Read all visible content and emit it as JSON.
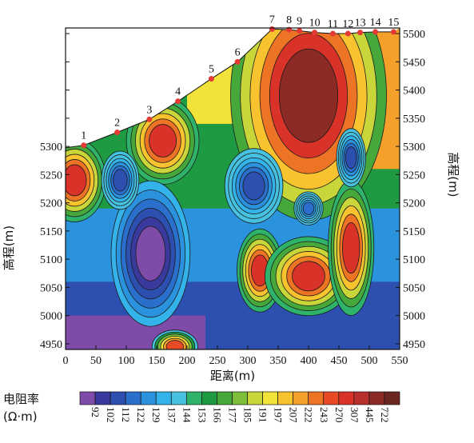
{
  "chart_data": {
    "type": "contour",
    "xlabel": "距离(m)",
    "ylabel_left": "高程(m)",
    "ylabel_right": "高程(m)",
    "xlim": [
      0,
      550
    ],
    "ylim": [
      4940,
      5510
    ],
    "x_ticks": [
      0,
      50,
      100,
      150,
      200,
      250,
      300,
      350,
      400,
      450,
      500,
      550
    ],
    "y_ticks": [
      4950,
      5000,
      5050,
      5100,
      5150,
      5200,
      5250,
      5300,
      5350,
      5400,
      5450,
      5500
    ],
    "surface_stations": [
      {
        "label": "1",
        "x": 30,
        "y": 5302
      },
      {
        "label": "2",
        "x": 85,
        "y": 5325
      },
      {
        "label": "3",
        "x": 138,
        "y": 5348
      },
      {
        "label": "4",
        "x": 185,
        "y": 5380
      },
      {
        "label": "5",
        "x": 240,
        "y": 5420
      },
      {
        "label": "6",
        "x": 283,
        "y": 5450
      },
      {
        "label": "7",
        "x": 340,
        "y": 5508
      },
      {
        "label": "8",
        "x": 368,
        "y": 5507
      },
      {
        "label": "9",
        "x": 385,
        "y": 5505
      },
      {
        "label": "10",
        "x": 410,
        "y": 5502
      },
      {
        "label": "11",
        "x": 440,
        "y": 5500
      },
      {
        "label": "12",
        "x": 465,
        "y": 5500
      },
      {
        "label": "13",
        "x": 485,
        "y": 5502
      },
      {
        "label": "14",
        "x": 510,
        "y": 5503
      },
      {
        "label": "15",
        "x": 540,
        "y": 5503
      }
    ],
    "colorbar": {
      "title": "电阻率",
      "unit": "(Ω·m)",
      "values": [
        92,
        102,
        112,
        122,
        129,
        137,
        144,
        153,
        166,
        177,
        185,
        191,
        197,
        207,
        222,
        243,
        270,
        307,
        445,
        722
      ],
      "colors": [
        "#7E4BA8",
        "#3A3A9E",
        "#2D4FB0",
        "#2A6FCB",
        "#2B92DD",
        "#34B3EA",
        "#46C2E0",
        "#2FB36B",
        "#1E9A43",
        "#46A83A",
        "#7DBE3B",
        "#C9D63A",
        "#F2E23A",
        "#F9C32F",
        "#F5A02A",
        "#EE7425",
        "#E84A25",
        "#D93229",
        "#B8302C",
        "#8C2A25",
        "#6B2622"
      ]
    },
    "anomalies": [
      {
        "name": "high",
        "x": 400,
        "y": 5390,
        "level": 722
      },
      {
        "name": "high",
        "x": 160,
        "y": 5310,
        "level": 307
      },
      {
        "name": "high",
        "x": 15,
        "y": 5240,
        "level": 307
      },
      {
        "name": "high",
        "x": 320,
        "y": 5080,
        "level": 307
      },
      {
        "name": "high",
        "x": 400,
        "y": 5070,
        "level": 307
      },
      {
        "name": "high",
        "x": 470,
        "y": 5120,
        "level": 307
      },
      {
        "name": "high",
        "x": 180,
        "y": 4945,
        "level": 270
      },
      {
        "name": "low",
        "x": 140,
        "y": 5110,
        "level": 92
      },
      {
        "name": "low",
        "x": 90,
        "y": 5240,
        "level": 112
      },
      {
        "name": "low",
        "x": 310,
        "y": 5230,
        "level": 112
      },
      {
        "name": "low",
        "x": 470,
        "y": 5280,
        "level": 112
      },
      {
        "name": "low",
        "x": 400,
        "y": 5190,
        "level": 122
      }
    ]
  }
}
